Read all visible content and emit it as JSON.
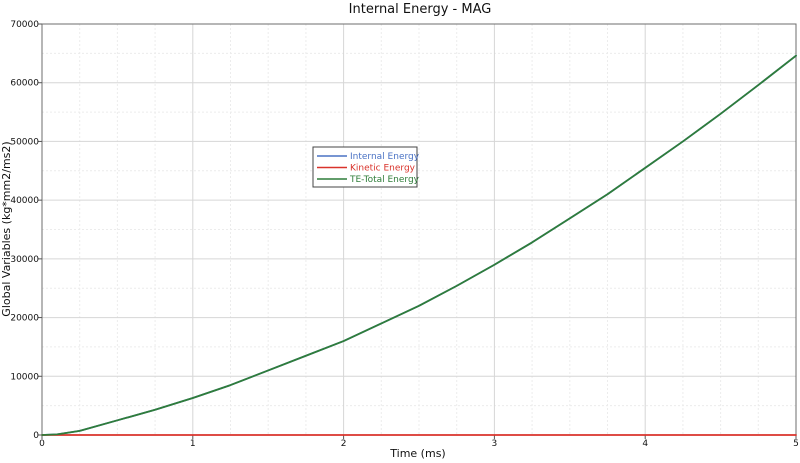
{
  "chart_data": {
    "type": "line",
    "title": "Internal Energy - MAG",
    "xlabel": "Time (ms)",
    "ylabel": "Global Variables (kg*mm2/ms2)",
    "xlim": [
      0,
      5
    ],
    "ylim": [
      0,
      70000
    ],
    "xticks": [
      0,
      1,
      2,
      3,
      4,
      5
    ],
    "yticks": [
      0,
      10000,
      20000,
      30000,
      40000,
      50000,
      60000,
      70000
    ],
    "grid": true,
    "legend_position": "center-left",
    "x": [
      0,
      0.1,
      0.25,
      0.5,
      0.75,
      1,
      1.25,
      1.5,
      1.75,
      2,
      2.25,
      2.5,
      2.75,
      3,
      3.25,
      3.5,
      3.75,
      4,
      4.25,
      4.5,
      4.75,
      5
    ],
    "series": [
      {
        "name": "Internal Energy",
        "color": "#4a72c4",
        "values": [
          0,
          100,
          700,
          2500,
          4300,
          6300,
          8500,
          11000,
          13500,
          16000,
          19000,
          22000,
          25400,
          29000,
          32800,
          36900,
          41000,
          45500,
          50000,
          54700,
          59600,
          64600
        ]
      },
      {
        "name": "Kinetic Energy",
        "color": "#d9332b",
        "values": [
          0,
          0,
          0,
          0,
          0,
          0,
          0,
          0,
          0,
          0,
          0,
          0,
          0,
          0,
          0,
          0,
          0,
          0,
          0,
          0,
          0,
          0
        ]
      },
      {
        "name": "TE-Total Energy",
        "color": "#2f7d3a",
        "values": [
          0,
          100,
          700,
          2500,
          4300,
          6300,
          8500,
          11000,
          13500,
          16000,
          19000,
          22000,
          25400,
          29000,
          32800,
          36900,
          41000,
          45500,
          50000,
          54700,
          59600,
          64600
        ]
      }
    ]
  }
}
